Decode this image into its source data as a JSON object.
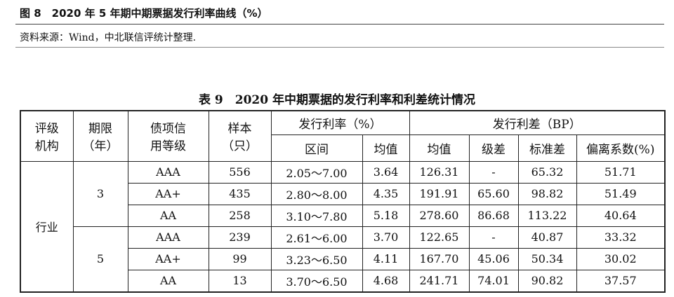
{
  "figure_caption": "图 8　2020 年 5 年期中期票据发行利率曲线（%）",
  "source_note": "资料来源：Wind，中北联信评统计整理.",
  "table": {
    "title": "表 9　2020 年中期票据的发行利率和利差统计情况",
    "header_left": [
      [
        "评级",
        "机构"
      ],
      [
        "期限",
        "（年）"
      ],
      [
        "债项信",
        "用等级"
      ],
      [
        "样本",
        "（只）"
      ]
    ],
    "groups": [
      "发行利率（%）",
      "发行利差（BP）"
    ],
    "subheaders": [
      "区间",
      "均值",
      "均值",
      "级差",
      "标准差",
      "偏离系数(%)"
    ],
    "institution": "行业",
    "terms": [
      {
        "term": "3",
        "rows": [
          [
            "AAA",
            "556",
            "2.05～7.00",
            "3.64",
            "126.31",
            "-",
            "65.32",
            "51.71"
          ],
          [
            "AA+",
            "435",
            "2.80～8.00",
            "4.35",
            "191.91",
            "65.60",
            "98.82",
            "51.49"
          ],
          [
            "AA",
            "258",
            "3.10～7.80",
            "5.18",
            "278.60",
            "86.68",
            "113.22",
            "40.64"
          ]
        ]
      },
      {
        "term": "5",
        "rows": [
          [
            "AAA",
            "239",
            "2.61～6.00",
            "3.70",
            "122.65",
            "-",
            "40.87",
            "33.32"
          ],
          [
            "AA+",
            "99",
            "3.23～6.50",
            "4.11",
            "167.70",
            "45.06",
            "50.34",
            "30.02"
          ],
          [
            "AA",
            "13",
            "3.70～6.50",
            "4.68",
            "241.71",
            "74.01",
            "90.82",
            "37.57"
          ]
        ]
      }
    ]
  }
}
